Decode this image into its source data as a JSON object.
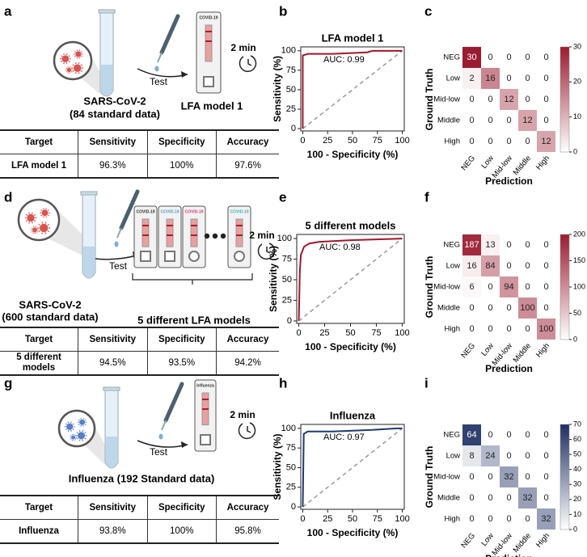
{
  "figure": {
    "panel_labels": [
      "a",
      "b",
      "c",
      "d",
      "e",
      "f",
      "g",
      "h",
      "i"
    ],
    "illustrations": [
      {
        "sample_lines": [
          "SARS-CoV-2",
          "(84 standard data)"
        ],
        "step": "Test",
        "time": "2 min",
        "device": "LFA model 1",
        "cassette_labels": [
          "COVID-19"
        ]
      },
      {
        "sample_lines": [
          "SARS-CoV-2",
          "(600 standard data)"
        ],
        "step": "Test",
        "time": "2 min",
        "device": "5 different LFA models",
        "cassette_labels": [
          "COVID-19",
          "COVID-19",
          "COVID-19",
          "COVID-19"
        ]
      },
      {
        "sample_lines": [
          "Influenza (192 Standard data)"
        ],
        "step": "Test",
        "time": "2 min",
        "cassette_labels": [
          "Influenza"
        ]
      }
    ],
    "tables": [
      {
        "header": [
          "Target",
          "Sensitivity",
          "Specificity",
          "Accuracy"
        ],
        "rows": [
          [
            "LFA model 1",
            "96.3%",
            "100%",
            "97.6%"
          ]
        ]
      },
      {
        "header": [
          "Target",
          "Sensitivity",
          "Specificity",
          "Accuracy"
        ],
        "rows": [
          [
            "5 different models",
            "94.5%",
            "93.5%",
            "94.2%"
          ]
        ]
      },
      {
        "header": [
          "Target",
          "Sensitivity",
          "Specificity",
          "Accuracy"
        ],
        "rows": [
          [
            "Influenza",
            "93.8%",
            "100%",
            "95.8%"
          ]
        ]
      }
    ]
  },
  "chart_data": [
    {
      "type": "line",
      "title": "LFA model 1",
      "xlabel": "100 - Specificity (%)",
      "ylabel": "Sensitivity (%)",
      "annotation": "AUC: 0.99",
      "x": [
        0,
        0,
        5,
        30,
        65,
        70,
        100
      ],
      "series": [
        {
          "name": "ROC",
          "color": "#a3162c",
          "values": [
            0,
            94,
            96,
            96,
            98,
            100,
            100
          ]
        }
      ],
      "xlim": [
        -2,
        102
      ],
      "ylim": [
        -3,
        105
      ],
      "xticks": [
        0,
        25,
        50,
        75,
        100
      ],
      "yticks": [
        0,
        25,
        50,
        75,
        100
      ]
    },
    {
      "type": "heatmap",
      "xlabel": "Prediction",
      "ylabel": "Ground Truth",
      "categories": [
        "NEG",
        "Low",
        "Mid-low",
        "Middle",
        "High"
      ],
      "rows": [
        "NEG",
        "Low",
        "Mid-low",
        "Middle",
        "High"
      ],
      "values": [
        [
          30,
          0,
          0,
          0,
          0
        ],
        [
          2,
          16,
          0,
          0,
          0
        ],
        [
          0,
          0,
          12,
          0,
          0
        ],
        [
          0,
          0,
          0,
          12,
          0
        ],
        [
          0,
          0,
          0,
          0,
          12
        ]
      ],
      "color": "#9b1b30",
      "zlim": [
        0,
        30
      ],
      "zticks": [
        0,
        10,
        20,
        30
      ]
    },
    {
      "type": "line",
      "title": "5 different models",
      "xlabel": "100 - Specificity (%)",
      "ylabel": "Sensitivity (%)",
      "annotation": "AUC: 0.98",
      "x": [
        0,
        1,
        2,
        5,
        10,
        20,
        50,
        100
      ],
      "series": [
        {
          "name": "ROC",
          "color": "#a3162c",
          "values": [
            0,
            60,
            80,
            90,
            94,
            96,
            98,
            100
          ]
        }
      ],
      "xlim": [
        -2,
        102
      ],
      "ylim": [
        -3,
        105
      ],
      "xticks": [
        0,
        25,
        50,
        75,
        100
      ],
      "yticks": [
        0,
        25,
        50,
        75,
        100
      ]
    },
    {
      "type": "heatmap",
      "xlabel": "Prediction",
      "ylabel": "Ground Truth",
      "categories": [
        "NEG",
        "Low",
        "Mid-low",
        "Middle",
        "High"
      ],
      "rows": [
        "NEG",
        "Low",
        "Mid-low",
        "Middle",
        "High"
      ],
      "values": [
        [
          187,
          13,
          0,
          0,
          0
        ],
        [
          16,
          84,
          0,
          0,
          0
        ],
        [
          6,
          0,
          94,
          0,
          0
        ],
        [
          0,
          0,
          0,
          100,
          0
        ],
        [
          0,
          0,
          0,
          0,
          100
        ]
      ],
      "color": "#9b1b30",
      "zlim": [
        0,
        200
      ],
      "zticks": [
        0,
        50,
        100,
        150,
        200
      ]
    },
    {
      "type": "line",
      "title": "Influenza",
      "xlabel": "100 - Specificity (%)",
      "ylabel": "Sensitivity (%)",
      "annotation": "AUC: 0.97",
      "x": [
        0,
        1,
        5,
        30,
        70,
        95,
        100
      ],
      "series": [
        {
          "name": "ROC",
          "color": "#1e3a6e",
          "values": [
            0,
            93,
            96,
            96,
            98,
            100,
            100
          ]
        }
      ],
      "xlim": [
        -2,
        102
      ],
      "ylim": [
        -3,
        105
      ],
      "xticks": [
        0,
        25,
        50,
        75,
        100
      ],
      "yticks": [
        0,
        25,
        50,
        75,
        100
      ]
    },
    {
      "type": "heatmap",
      "xlabel": "Prediction",
      "ylabel": "Ground Truth",
      "categories": [
        "NEG",
        "Low",
        "Mid-low",
        "Middle",
        "High"
      ],
      "rows": [
        "NEG",
        "Low",
        "Mid-low",
        "Middle",
        "High"
      ],
      "values": [
        [
          64,
          0,
          0,
          0,
          0
        ],
        [
          8,
          24,
          0,
          0,
          0
        ],
        [
          0,
          0,
          32,
          0,
          0
        ],
        [
          0,
          0,
          0,
          32,
          0
        ],
        [
          0,
          0,
          0,
          0,
          32
        ]
      ],
      "color": "#1e2f63",
      "zlim": [
        0,
        70
      ],
      "zticks": [
        0,
        10,
        20,
        30,
        40,
        50,
        60,
        70
      ]
    }
  ]
}
